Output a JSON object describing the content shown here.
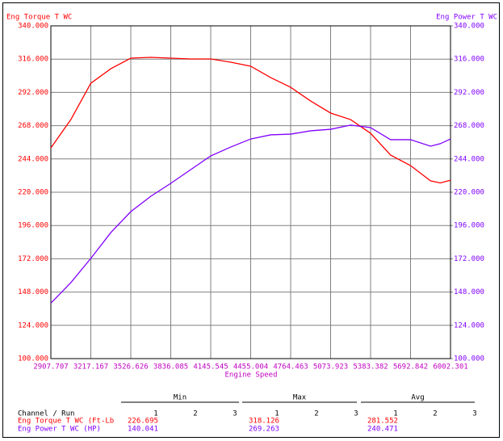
{
  "chart_data": {
    "type": "line",
    "left_axis_title": "Eng Torque T WC",
    "right_axis_title": "Eng Power T WC",
    "xlabel": "Engine Speed",
    "x": [
      2907.7,
      3062.4,
      3217.2,
      3371.9,
      3526.6,
      3681.4,
      3836.1,
      3990.8,
      4145.5,
      4300.3,
      4455.0,
      4609.7,
      4764.5,
      4919.2,
      5073.9,
      5228.7,
      5383.4,
      5538.1,
      5692.8,
      5847.6,
      5923.0,
      6002.3
    ],
    "series": [
      {
        "name": "Eng Torque T WC",
        "color": "#ff0000",
        "axis": "y",
        "values": [
          252.0,
          272.4,
          298.6,
          309.1,
          316.7,
          317.3,
          316.7,
          316.1,
          316.1,
          313.8,
          310.9,
          302.7,
          295.7,
          285.8,
          277.1,
          272.4,
          262.5,
          246.8,
          239.2,
          228.2,
          226.7,
          228.7
        ]
      },
      {
        "name": "Eng Power T WC",
        "color": "#8000ff",
        "axis": "y2",
        "values": [
          140.0,
          154.8,
          172.3,
          190.9,
          206.0,
          217.1,
          226.4,
          236.3,
          246.2,
          252.6,
          258.4,
          261.4,
          261.9,
          264.3,
          265.4,
          268.4,
          266.6,
          257.9,
          257.9,
          253.2,
          255.0,
          258.4
        ]
      }
    ],
    "xlim": [
      2907.707,
      6002.301
    ],
    "xticks": [
      2907.707,
      3217.167,
      3526.626,
      3836.085,
      4145.545,
      4455.004,
      4764.463,
      5073.923,
      5383.382,
      5692.842,
      6002.301
    ],
    "ylim": [
      100,
      340
    ],
    "yticks": [
      {
        "value": 100,
        "label": "100.000"
      },
      {
        "value": 124,
        "label": "124.000"
      },
      {
        "value": 148,
        "label": "148.000"
      },
      {
        "value": 172,
        "label": "172.000"
      },
      {
        "value": 196,
        "label": "196.000"
      },
      {
        "value": 220,
        "label": "220.000"
      },
      {
        "value": 244,
        "label": "244.000"
      },
      {
        "value": 268,
        "label": "268.000"
      },
      {
        "value": 292,
        "label": "292.000"
      },
      {
        "value": 316,
        "label": "316.000"
      },
      {
        "value": 340,
        "label": "340.000"
      }
    ],
    "y2lim": [
      100,
      340
    ],
    "y2ticks": [
      {
        "value": 100,
        "label": "100.000"
      },
      {
        "value": 124,
        "label": "124.000"
      },
      {
        "value": 148,
        "label": "148.000"
      },
      {
        "value": 172,
        "label": "172.000"
      },
      {
        "value": 196,
        "label": "196.000"
      },
      {
        "value": 220,
        "label": "220.000"
      },
      {
        "value": 244,
        "label": "244.000"
      },
      {
        "value": 268,
        "label": "268.000"
      },
      {
        "value": 292,
        "label": "292.000"
      },
      {
        "value": 316,
        "label": "316.000"
      },
      {
        "value": 340,
        "label": "340.000"
      }
    ],
    "grid": true
  },
  "stats_table": {
    "channel_header": "Channel / Run",
    "groups": [
      "Min",
      "Max",
      "Avg"
    ],
    "runs": [
      1,
      2,
      3
    ],
    "rows": [
      {
        "name": "Eng Torque T WC (Ft-Lb",
        "color": "#ff0000",
        "min": 226.695,
        "max": 318.126,
        "avg": 281.552
      },
      {
        "name": "Eng Power T WC (HP)",
        "color": "#8000ff",
        "min": 140.041,
        "max": 269.263,
        "avg": 240.471
      }
    ]
  }
}
